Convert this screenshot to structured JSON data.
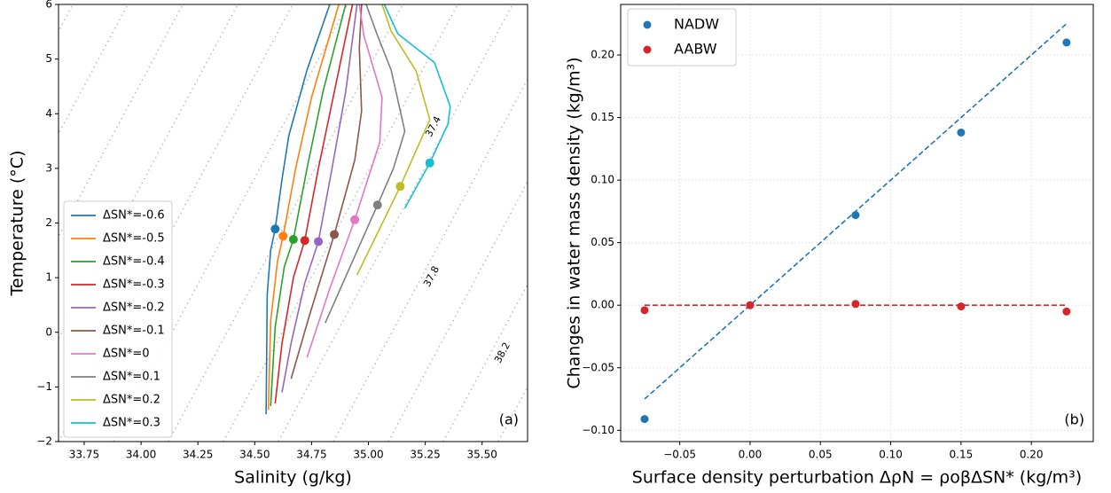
{
  "chart_data": [
    {
      "type": "line",
      "xlabel": "Salinity (g/kg)",
      "ylabel": "Temperature (°C)",
      "panel_label": "(a)",
      "xlim": [
        33.637,
        35.7
      ],
      "ylim": [
        -2,
        6
      ],
      "xticks": [
        33.75,
        {
          "value": 34.0,
          "label": "34.00"
        },
        34.25,
        {
          "value": 34.5,
          "label": "34.50"
        },
        34.75,
        {
          "value": 35.0,
          "label": "35.00"
        },
        35.25,
        {
          "value": 35.5,
          "label": "35.50"
        }
      ],
      "yticks": [
        {
          "value": -2,
          "label": "−2"
        },
        {
          "value": -1,
          "label": "−1"
        },
        0,
        1,
        2,
        3,
        4,
        5,
        6
      ],
      "grid": false,
      "legend": "lower left",
      "contour_labels": [
        "37.4",
        "37.8",
        "38.2"
      ],
      "series": [
        {
          "name": "ΔSN*=-0.6",
          "color": "#1f77b4",
          "x": [
            34.55,
            34.555,
            34.57,
            34.59,
            34.62,
            34.65,
            34.73,
            34.83
          ],
          "y": [
            -1.5,
            0.7,
            1.5,
            1.89,
            2.8,
            3.6,
            4.8,
            6.0
          ],
          "marker_x": 34.59,
          "marker_y": 1.89
        },
        {
          "name": "ΔSN*=-0.5",
          "color": "#ff7f0e",
          "x": [
            34.56,
            34.57,
            34.6,
            34.625,
            34.68,
            34.75,
            34.87
          ],
          "y": [
            -1.42,
            0.2,
            1.3,
            1.76,
            3.0,
            4.3,
            6.0
          ],
          "marker_x": 34.625,
          "marker_y": 1.76
        },
        {
          "name": "ΔSN*=-0.4",
          "color": "#2ca02c",
          "x": [
            34.57,
            34.59,
            34.63,
            34.67,
            34.73,
            34.8,
            34.9
          ],
          "y": [
            -1.35,
            0.1,
            1.2,
            1.7,
            3.0,
            4.4,
            6.0
          ],
          "marker_x": 34.67,
          "marker_y": 1.7
        },
        {
          "name": "ΔSN*=-0.3",
          "color": "#d62728",
          "x": [
            34.59,
            34.62,
            34.67,
            34.72,
            34.78,
            34.85,
            34.93
          ],
          "y": [
            -1.3,
            -0.2,
            1.0,
            1.68,
            3.0,
            4.4,
            6.0
          ],
          "marker_x": 34.72,
          "marker_y": 1.68
        },
        {
          "name": "ΔSN*=-0.2",
          "color": "#9467bd",
          "x": [
            34.62,
            34.66,
            34.72,
            34.78,
            34.84,
            34.9,
            34.95
          ],
          "y": [
            -1.1,
            -0.2,
            0.9,
            1.66,
            3.0,
            4.4,
            6.0
          ],
          "marker_x": 34.78,
          "marker_y": 1.66
        },
        {
          "name": "ΔSN*=-0.1",
          "color": "#8c564b",
          "x": [
            34.66,
            34.74,
            34.85,
            34.94,
            34.97,
            34.96,
            34.97
          ],
          "y": [
            -0.85,
            0.3,
            1.79,
            3.15,
            4.05,
            5.2,
            6.0
          ],
          "marker_x": 34.85,
          "marker_y": 1.79
        },
        {
          "name": "ΔSN*=0",
          "color": "#e377c2",
          "x": [
            34.73,
            34.83,
            34.94,
            35.05,
            35.06,
            34.98,
            34.96
          ],
          "y": [
            -0.46,
            0.8,
            2.06,
            3.48,
            4.3,
            5.43,
            6.0
          ],
          "marker_x": 34.94,
          "marker_y": 2.06
        },
        {
          "name": "ΔSN*=0.1",
          "color": "#7f7f7f",
          "x": [
            34.81,
            34.93,
            35.04,
            35.11,
            35.16,
            35.1,
            35.04,
            34.99
          ],
          "y": [
            0.17,
            1.3,
            2.33,
            3.0,
            3.68,
            4.8,
            5.43,
            6.0
          ],
          "marker_x": 35.04,
          "marker_y": 2.33
        },
        {
          "name": "ΔSN*=0.2",
          "color": "#bcbd22",
          "x": [
            34.95,
            35.05,
            35.14,
            35.27,
            35.21,
            35.1,
            35.06
          ],
          "y": [
            1.05,
            1.9,
            2.67,
            3.89,
            4.78,
            5.51,
            6.0
          ],
          "marker_x": 35.14,
          "marker_y": 2.67
        },
        {
          "name": "ΔSN*=0.3",
          "color": "#17becf",
          "x": [
            35.16,
            35.27,
            35.35,
            35.36,
            35.29,
            35.13,
            35.07
          ],
          "y": [
            2.27,
            3.1,
            3.81,
            4.13,
            4.94,
            5.46,
            6.0
          ],
          "marker_x": 35.27,
          "marker_y": 3.1
        }
      ]
    },
    {
      "type": "scatter",
      "xlabel": "Surface density perturbation ΔρN = ρoβΔSN* (kg/m³)",
      "ylabel": "Changes in water mass density (kg/m³)",
      "panel_label": "(b)",
      "xlim": [
        -0.092,
        0.244
      ],
      "ylim": [
        -0.109,
        0.2404
      ],
      "xticks": [
        {
          "value": -0.05,
          "label": "−0.05"
        },
        {
          "value": 0.0,
          "label": "0.00"
        },
        0.05,
        {
          "value": 0.1,
          "label": "0.10"
        },
        0.15,
        {
          "value": 0.2,
          "label": "0.20"
        }
      ],
      "yticks": [
        {
          "value": -0.1,
          "label": "−0.10"
        },
        {
          "value": -0.05,
          "label": "−0.05"
        },
        {
          "value": 0.0,
          "label": "0.00"
        },
        0.05,
        {
          "value": 0.1,
          "label": "0.10"
        },
        0.15,
        {
          "value": 0.2,
          "label": "0.20"
        }
      ],
      "grid": true,
      "legend": "upper left",
      "series": [
        {
          "name": "NADW",
          "color": "#1f77b4",
          "x": [
            -0.075,
            0.0,
            0.075,
            0.15,
            0.225
          ],
          "values": [
            -0.091,
            0.0,
            0.072,
            0.138,
            0.21
          ],
          "fit_x": [
            -0.075,
            0.225
          ],
          "fit_y": [
            -0.075,
            0.225
          ]
        },
        {
          "name": "AABW",
          "color": "#d62728",
          "x": [
            -0.075,
            0.0,
            0.075,
            0.15,
            0.225
          ],
          "values": [
            -0.004,
            0.0,
            0.001,
            -0.001,
            -0.005
          ],
          "fit_x": [
            -0.075,
            0.225
          ],
          "fit_y": [
            0.0,
            0.0
          ]
        }
      ]
    }
  ]
}
